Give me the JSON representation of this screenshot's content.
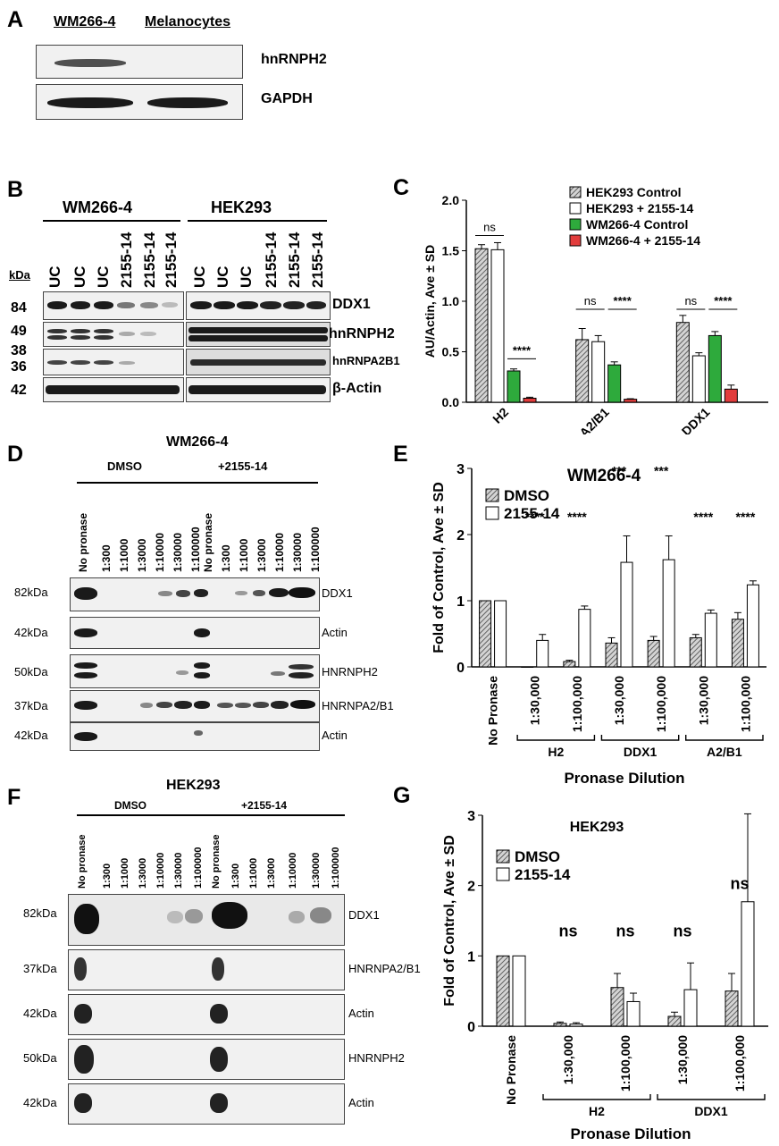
{
  "panels": {
    "A": {
      "letter": "A",
      "col_headers": [
        "WM266-4",
        "Melanocytes"
      ],
      "rows": [
        "hnRNPH2",
        "GAPDH"
      ]
    },
    "B": {
      "letter": "B",
      "groups": [
        "WM266-4",
        "HEK293"
      ],
      "lanes_left": [
        "UC",
        "UC",
        "UC",
        "2155-14",
        "2155-14",
        "2155-14"
      ],
      "lanes_right": [
        "UC",
        "UC",
        "UC",
        "2155-14",
        "2155-14",
        "2155-14"
      ],
      "kda_header": "kDa",
      "kda": [
        "84",
        "49",
        "38",
        "36",
        "42"
      ],
      "rows": [
        "DDX1",
        "hnRNPH2",
        "hnRNPA2B1",
        "β-Actin"
      ]
    },
    "D": {
      "letter": "D",
      "title": "WM266-4",
      "groups": [
        "DMSO",
        "+2155-14"
      ],
      "lanes": [
        "No pronase",
        "1:300",
        "1:1000",
        "1:3000",
        "1:10000",
        "1:30000",
        "1:100000",
        "No pronase",
        "1:300",
        "1:1000",
        "1:3000",
        "1:10000",
        "1:30000",
        "1:100000"
      ],
      "kda": [
        "82kDa",
        "42kDa",
        "50kDa",
        "37kDa",
        "42kDa"
      ],
      "rows": [
        "DDX1",
        "Actin",
        "HNRNPH2",
        "HNRNPA2/B1",
        "Actin"
      ]
    },
    "F": {
      "letter": "F",
      "title": "HEK293",
      "groups": [
        "DMSO",
        "+2155-14"
      ],
      "lanes": [
        "No pronase",
        "1:300",
        "1:1000",
        "1:3000",
        "1:10000",
        "1:30000",
        "1:100000",
        "No pronase",
        "1:300",
        "1:1000",
        "1:3000",
        "1:10000",
        "1:30000",
        "1:100000"
      ],
      "kda": [
        "82kDa",
        "37kDa",
        "42kDa",
        "50kDa",
        "42kDa"
      ],
      "rows": [
        "DDX1",
        "HNRNPA2/B1",
        "Actin",
        "HNRNPH2",
        "Actin"
      ]
    }
  },
  "chart_data": [
    {
      "panel": "C",
      "type": "bar",
      "categories": [
        "H2",
        "A2/B1",
        "DDX1"
      ],
      "ylabel": "AU/Actin, Ave ± SD",
      "ylim": [
        0,
        2.0
      ],
      "yticks": [
        "0.0",
        "0.5",
        "1.0",
        "1.5",
        "2.0"
      ],
      "legend": "top-right",
      "series": [
        {
          "name": "HEK293 Control",
          "color": "#b5b5b5",
          "pattern": "hatched",
          "values": [
            1.52,
            0.62,
            0.79
          ],
          "errors": [
            0.04,
            0.11,
            0.07
          ]
        },
        {
          "name": "HEK293 + 2155-14",
          "color": "#ffffff",
          "values": [
            1.51,
            0.6,
            0.46
          ],
          "errors": [
            0.07,
            0.06,
            0.03
          ]
        },
        {
          "name": "WM266-4 Control",
          "color": "#2eaa3c",
          "values": [
            0.31,
            0.37,
            0.66
          ],
          "errors": [
            0.02,
            0.03,
            0.04
          ]
        },
        {
          "name": "WM266-4 + 2155-14",
          "color": "#e23c3c",
          "values": [
            0.04,
            0.03,
            0.13
          ],
          "errors": [
            0.01,
            0.005,
            0.04
          ]
        }
      ],
      "annotations": [
        "ns",
        "****",
        "ns",
        "****",
        "ns",
        "****"
      ]
    },
    {
      "panel": "E",
      "type": "bar",
      "title": "WM266-4",
      "ylabel": "Fold of Control, Ave ± SD",
      "xlabel": "Pronase Dilution",
      "ylim": [
        0,
        3
      ],
      "yticks": [
        "0",
        "1",
        "2",
        "3"
      ],
      "categories": [
        "No Pronase",
        "1:30,000",
        "1:100,000",
        "1:30,000",
        "1:100,000",
        "1:30,000",
        "1:100,000"
      ],
      "groups": [
        "H2",
        "DDX1",
        "A2/B1"
      ],
      "legend": "top-left",
      "series": [
        {
          "name": "DMSO",
          "color": "#b5b5b5",
          "pattern": "hatched",
          "values": [
            1.0,
            0.0,
            0.08,
            0.36,
            0.4,
            0.44,
            0.72
          ],
          "errors": [
            0,
            0,
            0.02,
            0.08,
            0.06,
            0.05,
            0.1
          ]
        },
        {
          "name": "2155-14",
          "color": "#ffffff",
          "values": [
            1.0,
            0.4,
            0.87,
            1.58,
            1.62,
            0.81,
            1.24
          ],
          "errors": [
            0,
            0.09,
            0.05,
            0.4,
            0.36,
            0.05,
            0.06
          ]
        }
      ],
      "annotations": [
        "****",
        "****",
        "***",
        "***",
        "****",
        "****"
      ]
    },
    {
      "panel": "G",
      "type": "bar",
      "title": "HEK293",
      "ylabel": "Fold of Control, Ave ± SD",
      "xlabel": "Pronase Dilution",
      "ylim": [
        0,
        3
      ],
      "yticks": [
        "0",
        "1",
        "2",
        "3"
      ],
      "categories": [
        "No Pronase",
        "1:30,000",
        "1:100,000",
        "1:30,000",
        "1:100,000"
      ],
      "groups": [
        "H2",
        "DDX1"
      ],
      "legend": "top-left",
      "series": [
        {
          "name": "DMSO",
          "color": "#b5b5b5",
          "pattern": "hatched",
          "values": [
            1.0,
            0.04,
            0.55,
            0.14,
            0.5
          ],
          "errors": [
            0,
            0.02,
            0.2,
            0.06,
            0.25
          ]
        },
        {
          "name": "2155-14",
          "color": "#ffffff",
          "values": [
            1.0,
            0.03,
            0.35,
            0.52,
            1.77
          ],
          "errors": [
            0,
            0.02,
            0.12,
            0.38,
            1.25
          ]
        }
      ],
      "annotations": [
        "ns",
        "ns",
        "ns",
        "ns"
      ]
    }
  ]
}
